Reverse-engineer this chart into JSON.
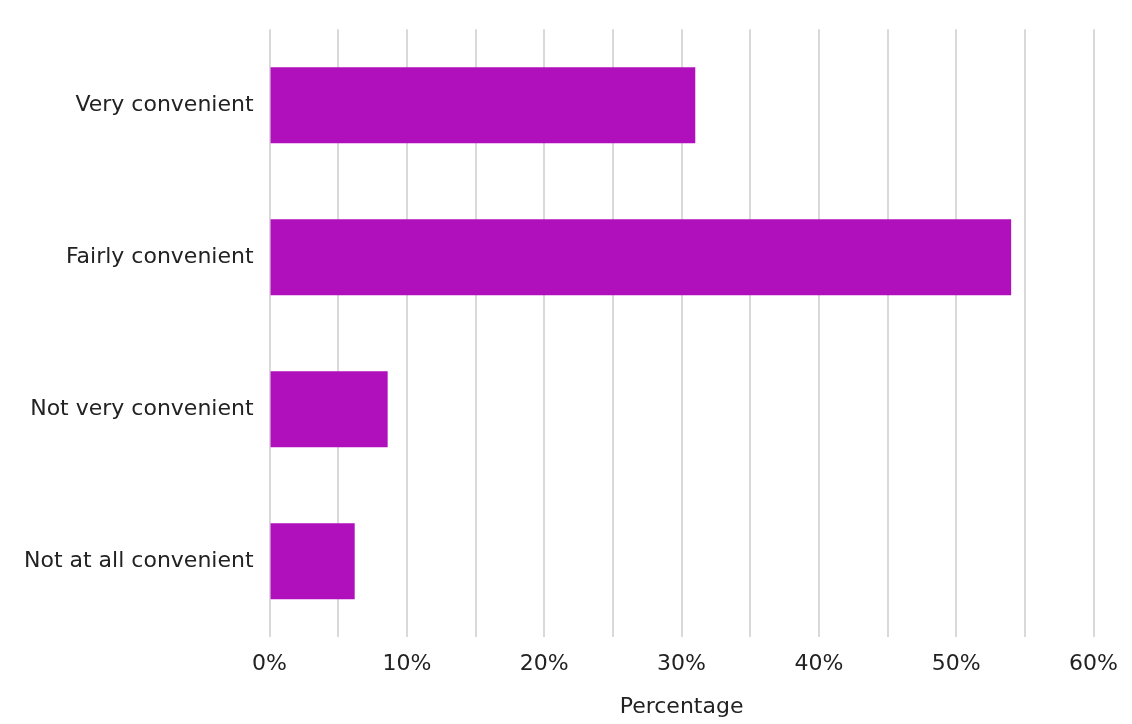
{
  "chart_data": {
    "type": "bar",
    "orientation": "horizontal",
    "categories": [
      "Very convenient",
      "Fairly convenient",
      "Not very convenient",
      "Not at all convenient"
    ],
    "values": [
      31,
      54,
      8.6,
      6.2
    ],
    "color": "#b010bb",
    "xlabel": "Percentage",
    "xlim": [
      0,
      60
    ],
    "xticks": [
      {
        "value": 0,
        "label": "0%"
      },
      {
        "value": 5,
        "label": null
      },
      {
        "value": 10,
        "label": "10%"
      },
      {
        "value": 15,
        "label": null
      },
      {
        "value": 20,
        "label": "20%"
      },
      {
        "value": 25,
        "label": null
      },
      {
        "value": 30,
        "label": "30%"
      },
      {
        "value": 35,
        "label": null
      },
      {
        "value": 40,
        "label": "40%"
      },
      {
        "value": 45,
        "label": null
      },
      {
        "value": 50,
        "label": "50%"
      },
      {
        "value": 55,
        "label": null
      },
      {
        "value": 60,
        "label": "60%"
      }
    ],
    "grid": "x",
    "legend": false
  }
}
